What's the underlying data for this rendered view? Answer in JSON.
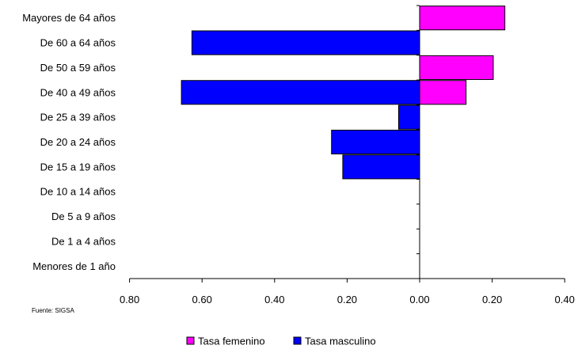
{
  "chart_data": {
    "type": "bar",
    "orientation": "horizontal",
    "layout": "population-pyramid",
    "categories": [
      "Mayores de 64 años",
      "De 60 a 64 años",
      "De 50 a 59 años",
      "De 40 a 49 años",
      "De 25 a 39 años",
      "De 20 a 24 años",
      "De 15 a 19 años",
      "De 10 a 14 años",
      "De 5 a 9 años",
      "De 1 a 4 años",
      "Menores de 1 año"
    ],
    "series": [
      {
        "name": "Tasa femenino",
        "side": "right",
        "color": "#ff00ff",
        "values": [
          0.235,
          0,
          0.203,
          0.128,
          0,
          0,
          0,
          0,
          0,
          0,
          0
        ]
      },
      {
        "name": "Tasa masculino",
        "side": "left",
        "color": "#0000ff",
        "values": [
          0,
          0.628,
          0,
          0.657,
          0.058,
          0.243,
          0.212,
          0,
          0,
          0,
          0
        ]
      }
    ],
    "x_ticks": [
      "0.80",
      "0.60",
      "0.40",
      "0.20",
      "0.00",
      "0.20",
      "0.40"
    ],
    "xlim_left": 0.8,
    "xlim_right": 0.4,
    "grid": false,
    "legend_position": "bottom-center",
    "source": "Fuente: SIGSA"
  }
}
